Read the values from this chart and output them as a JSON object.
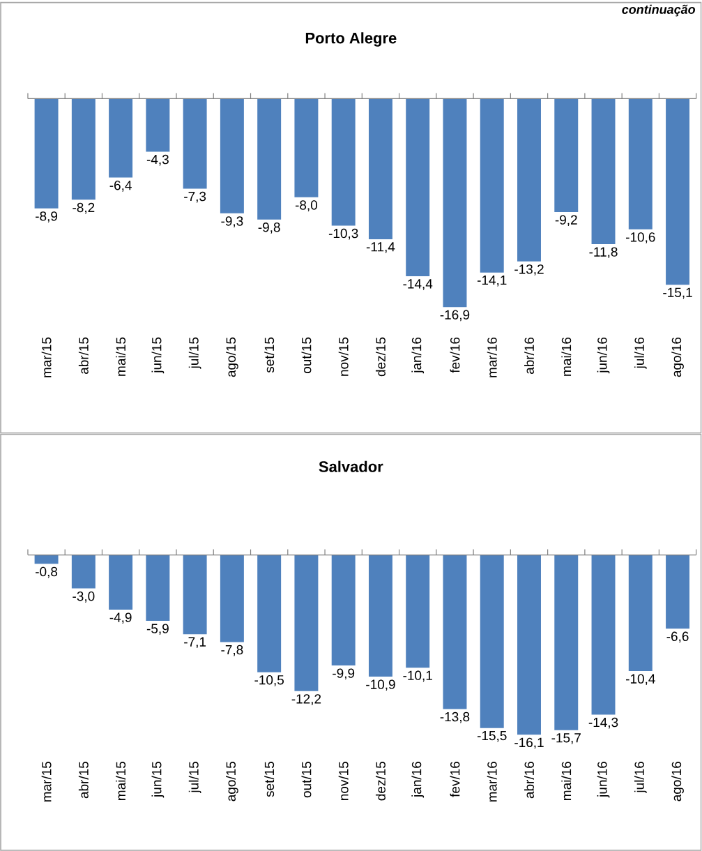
{
  "chart_data": [
    {
      "type": "bar",
      "title": "Porto Alegre",
      "annotations": [
        "continuação"
      ],
      "color": "#4f81bd",
      "categories": [
        "mar/15",
        "abr/15",
        "mai/15",
        "jun/15",
        "jul/15",
        "ago/15",
        "set/15",
        "out/15",
        "nov/15",
        "dez/15",
        "jan/16",
        "fev/16",
        "mar/16",
        "abr/16",
        "mai/16",
        "jun/16",
        "jul/16",
        "ago/16"
      ],
      "values": [
        -8.9,
        -8.2,
        -6.4,
        -4.3,
        -7.3,
        -9.3,
        -9.8,
        -8.0,
        -10.3,
        -11.4,
        -14.4,
        -16.9,
        -14.1,
        -13.2,
        -9.2,
        -11.8,
        -10.6,
        -15.1
      ],
      "value_labels": [
        "-8,9",
        "-8,2",
        "-6,4",
        "-4,3",
        "-7,3",
        "-9,3",
        "-9,8",
        "-8,0",
        "-10,3",
        "-11,4",
        "-14,4",
        "-16,9",
        "-14,1",
        "-13,2",
        "-9,2",
        "-11,8",
        "-10,6",
        "-15,1"
      ]
    },
    {
      "type": "bar",
      "title": "Salvador",
      "color": "#4f81bd",
      "categories": [
        "mar/15",
        "abr/15",
        "mai/15",
        "jun/15",
        "jul/15",
        "ago/15",
        "set/15",
        "out/15",
        "nov/15",
        "dez/15",
        "jan/16",
        "fev/16",
        "mar/16",
        "abr/16",
        "mai/16",
        "jun/16",
        "jul/16",
        "ago/16"
      ],
      "values": [
        -0.8,
        -3.0,
        -4.9,
        -5.9,
        -7.1,
        -7.8,
        -10.5,
        -12.2,
        -9.9,
        -10.9,
        -10.1,
        -13.8,
        -15.5,
        -16.1,
        -15.7,
        -14.3,
        -10.4,
        -6.6
      ],
      "value_labels": [
        "-0,8",
        "-3,0",
        "-4,9",
        "-5,9",
        "-7,1",
        "-7,8",
        "-10,5",
        "-12,2",
        "-9,9",
        "-10,9",
        "-10,1",
        "-13,8",
        "-15,5",
        "-16,1",
        "-15,7",
        "-14,3",
        "-10,4",
        "-6,6"
      ]
    }
  ]
}
